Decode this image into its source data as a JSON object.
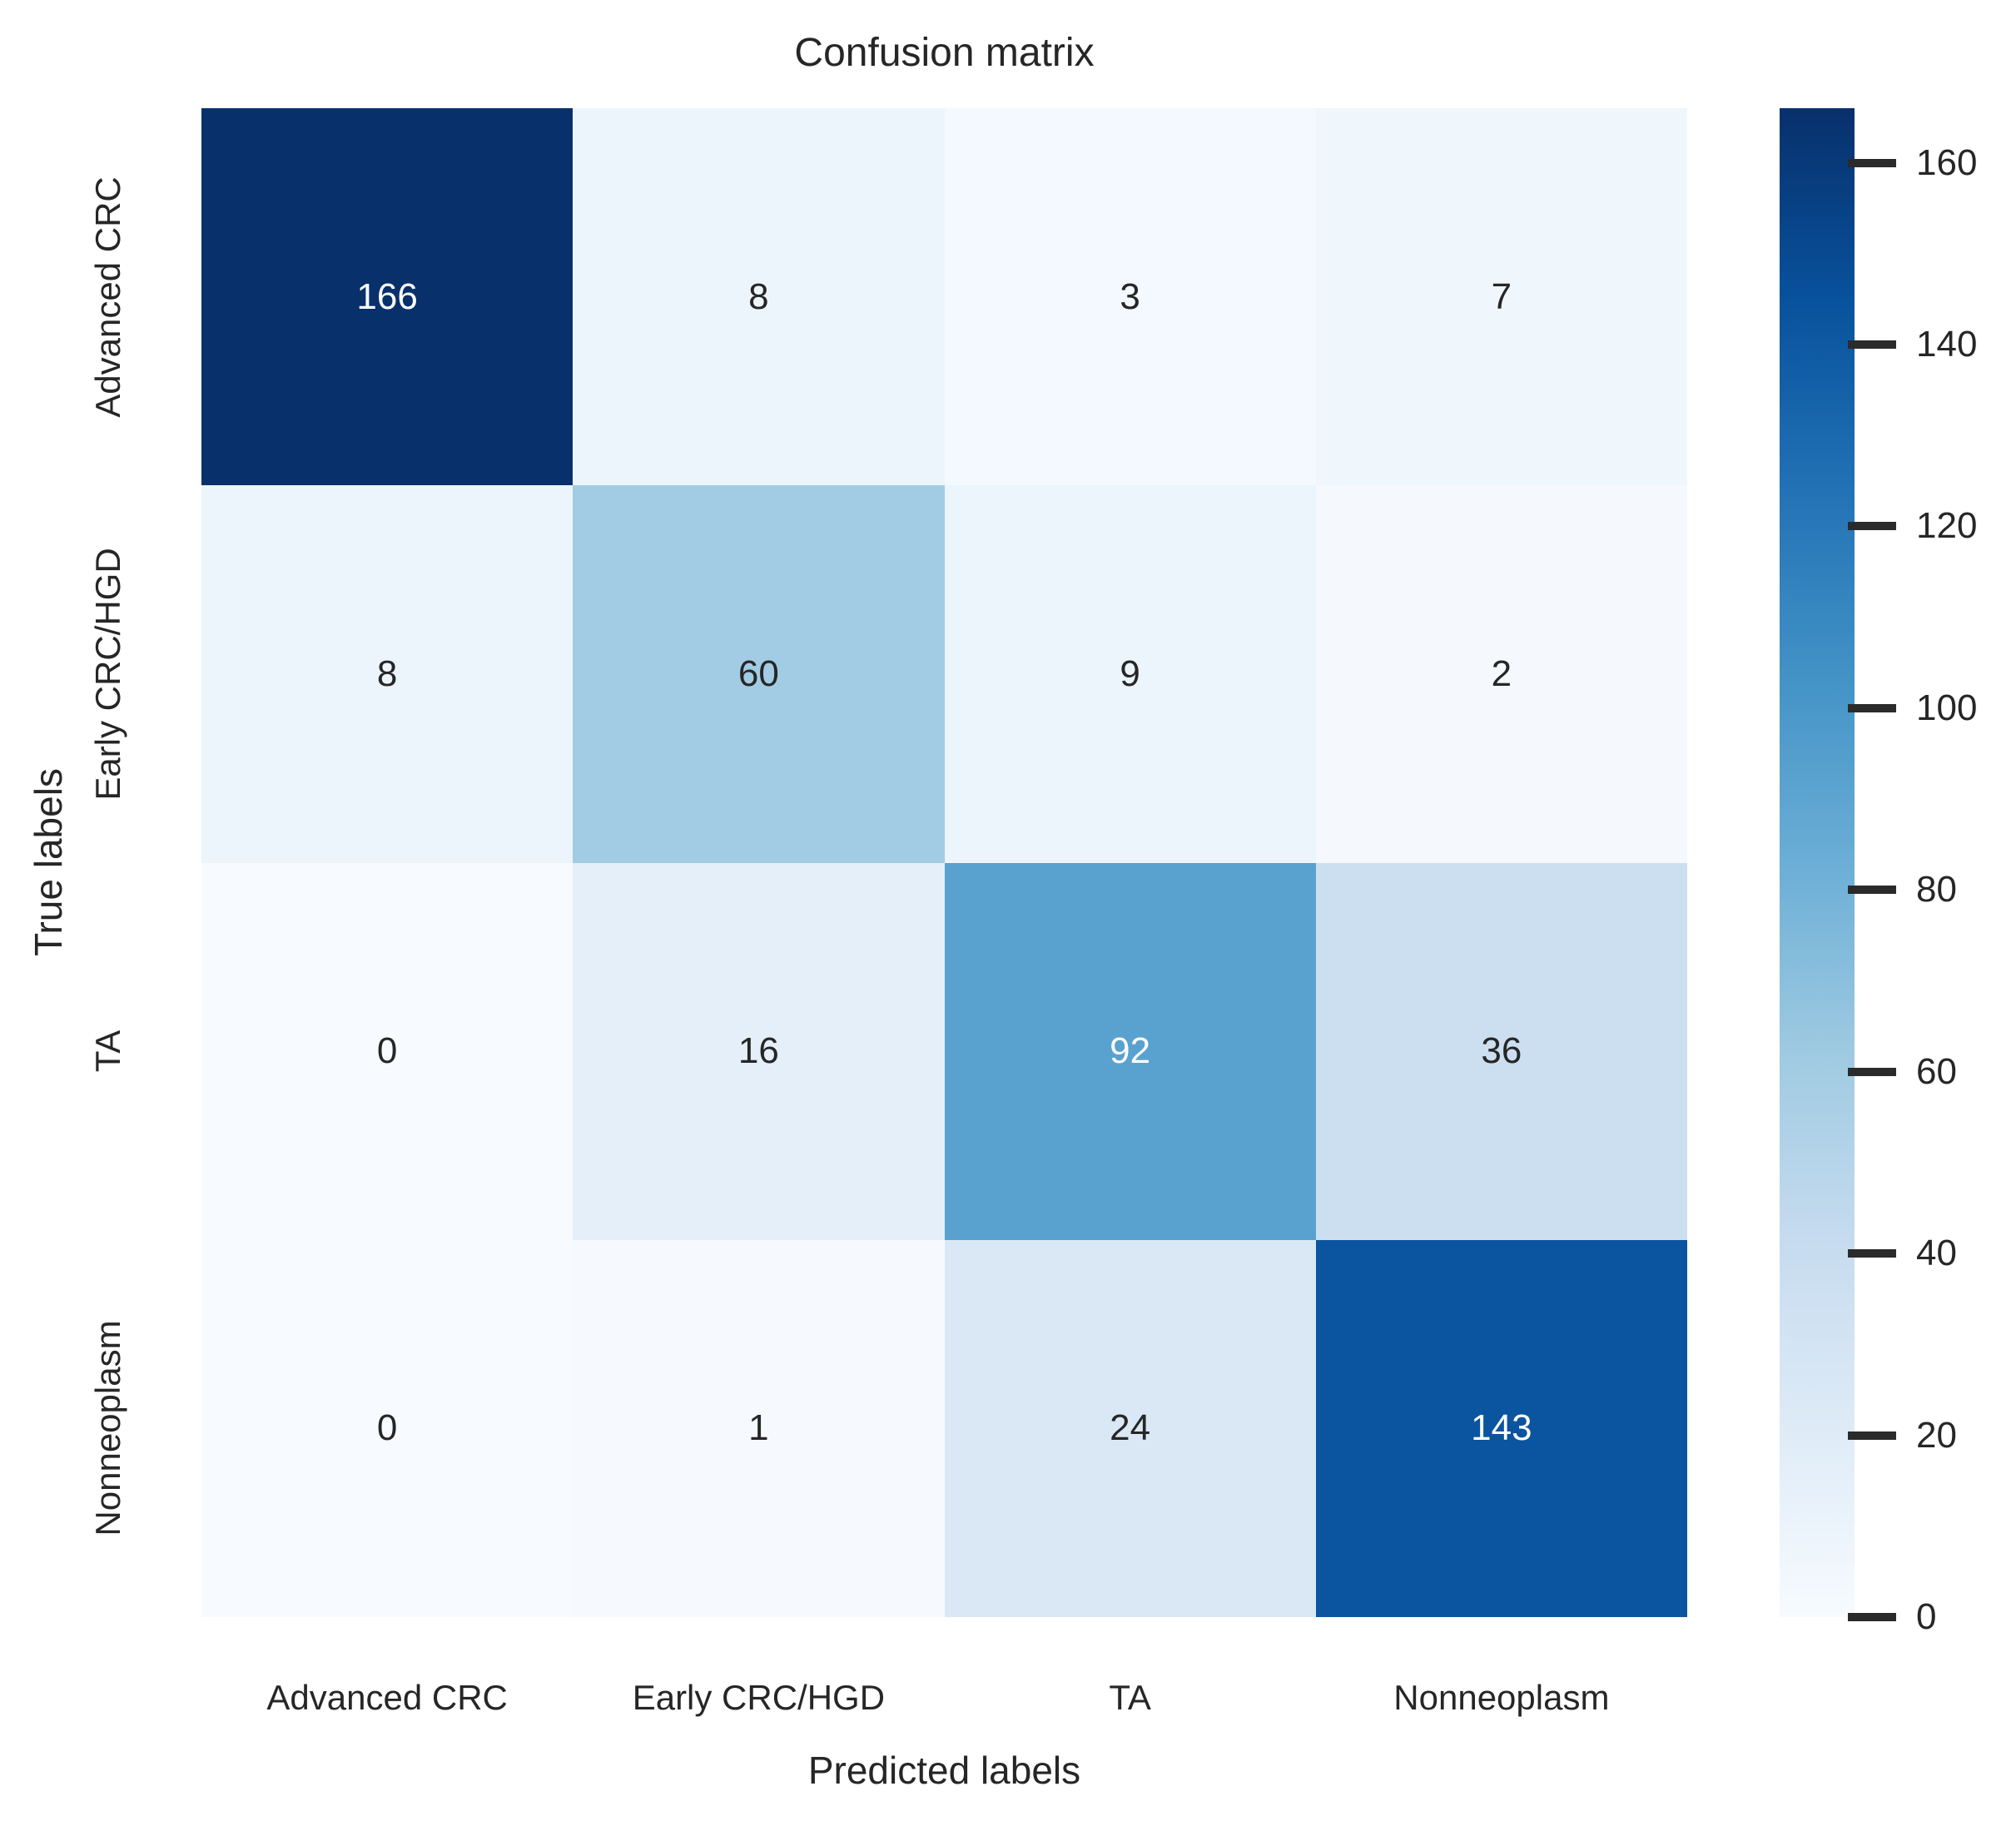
{
  "chart_data": {
    "type": "heatmap",
    "title": "Confusion matrix",
    "xlabel": "Predicted labels",
    "ylabel": "True labels",
    "x_categories": [
      "Advanced CRC",
      "Early CRC/HGD",
      "TA",
      "Nonneoplasm"
    ],
    "y_categories": [
      "Advanced CRC",
      "Early CRC/HGD",
      "TA",
      "Nonneoplasm"
    ],
    "matrix": [
      [
        166,
        8,
        3,
        7
      ],
      [
        8,
        60,
        9,
        2
      ],
      [
        0,
        16,
        92,
        36
      ],
      [
        0,
        1,
        24,
        143
      ]
    ],
    "vmin": 0,
    "vmax": 166,
    "colormap_name": "Blues",
    "colormap_stops": [
      [
        0.0,
        "#f7fbff"
      ],
      [
        0.125,
        "#deebf7"
      ],
      [
        0.25,
        "#c6dbef"
      ],
      [
        0.375,
        "#9ecae1"
      ],
      [
        0.5,
        "#6baed6"
      ],
      [
        0.625,
        "#4292c6"
      ],
      [
        0.75,
        "#2171b5"
      ],
      [
        0.875,
        "#08519c"
      ],
      [
        1.0,
        "#08306b"
      ]
    ],
    "colorbar_ticks": [
      0,
      20,
      40,
      60,
      80,
      100,
      120,
      140,
      160
    ],
    "colorbar_position": "right",
    "grid": false,
    "legend_position": "none"
  },
  "colors": {
    "background": "#ffffff",
    "text": "#262626",
    "annotation_light": "#ffffff",
    "annotation_dark": "#262626",
    "tick_mark": "#2b2b2b",
    "cmap_min": "#f7fbff",
    "cmap_max": "#08306b"
  }
}
